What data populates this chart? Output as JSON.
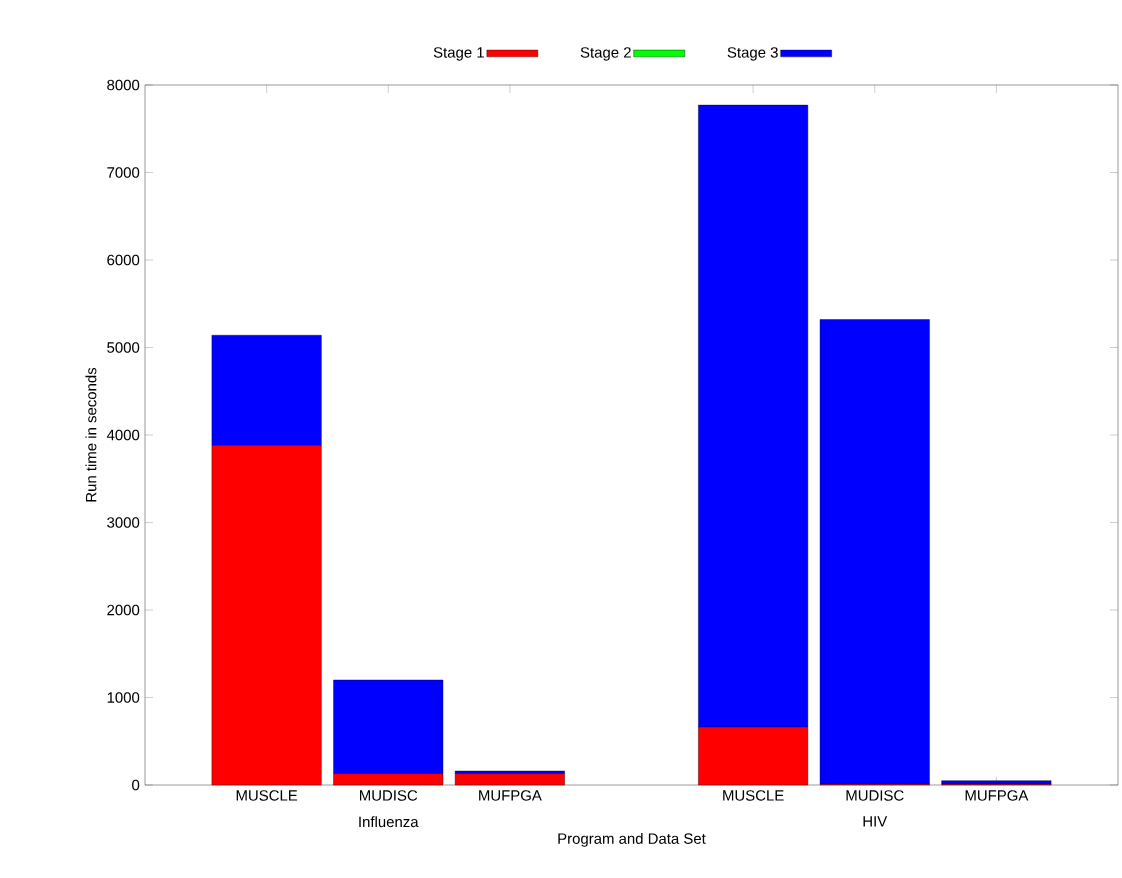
{
  "chart_data": {
    "type": "bar",
    "stacked": true,
    "xlabel": "Program and Data Set",
    "ylabel": "Run time in seconds",
    "categories": [
      "MUSCLE",
      "MUDISC",
      "MUFPGA",
      null,
      "MUSCLE",
      "MUDISC",
      "MUFPGA"
    ],
    "series": [
      {
        "name": "Stage 1",
        "color": "#ff0000",
        "values": [
          3880,
          130,
          130,
          null,
          660,
          10,
          10
        ]
      },
      {
        "name": "Stage 2",
        "color": "#00ff00",
        "values": [
          0,
          0,
          0,
          null,
          0,
          0,
          0
        ]
      },
      {
        "name": "Stage 3",
        "color": "#0000ff",
        "values": [
          1260,
          1070,
          30,
          null,
          7110,
          5310,
          40
        ]
      }
    ],
    "annotations": [
      "Influenza",
      "HIV"
    ],
    "ylim": [
      0,
      8000
    ],
    "yticks": [
      0,
      1000,
      2000,
      3000,
      4000,
      5000,
      6000,
      7000,
      8000
    ],
    "legend": "top"
  }
}
